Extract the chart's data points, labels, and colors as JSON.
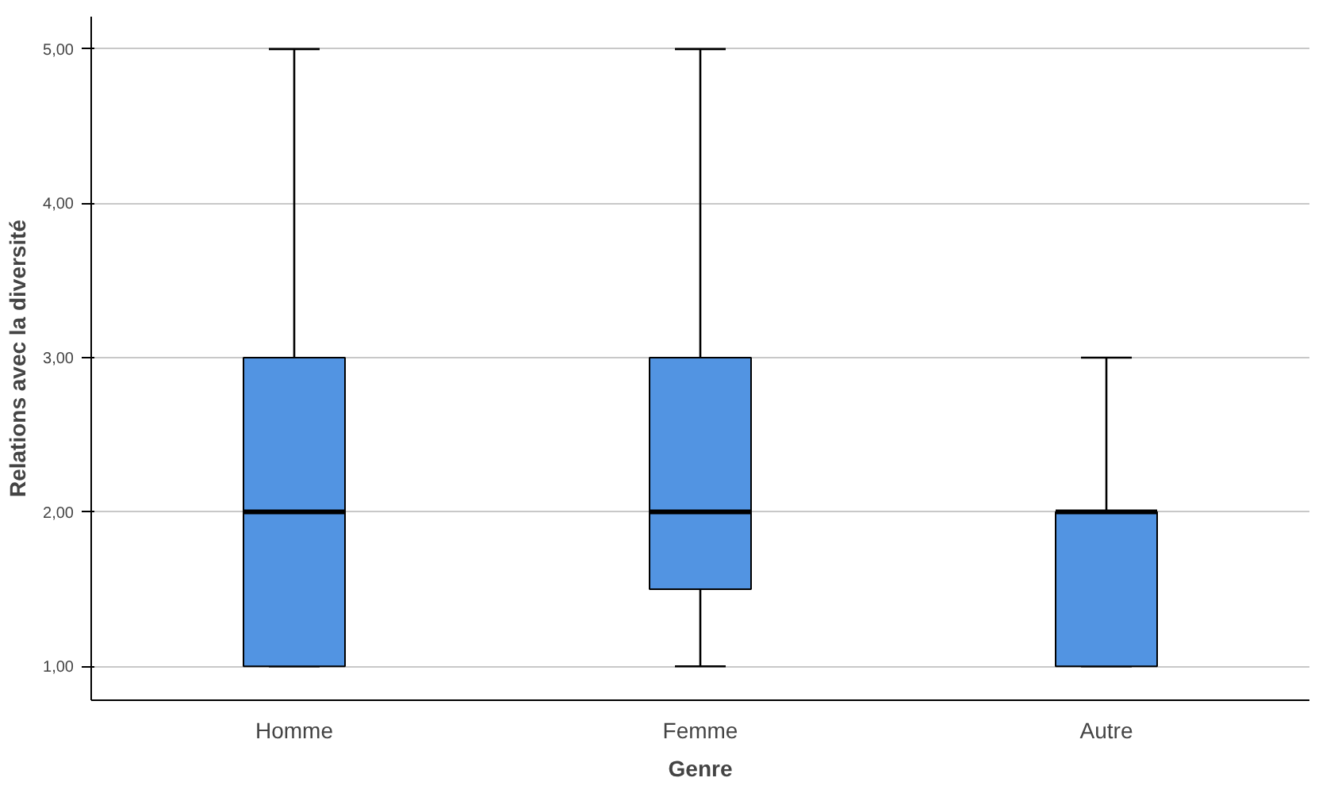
{
  "chart_data": {
    "type": "box",
    "xlabel": "Genre",
    "ylabel": "Relations avec la diversité",
    "categories": [
      "Homme",
      "Femme",
      "Autre"
    ],
    "boxes": [
      {
        "low": 1,
        "q1": 1,
        "median": 2,
        "q3": 3,
        "high": 5
      },
      {
        "low": 1,
        "q1": 1.5,
        "median": 2,
        "q3": 3,
        "high": 5
      },
      {
        "low": 1,
        "q1": 1,
        "median": 2,
        "q3": 2,
        "high": 3
      }
    ],
    "color": "#5294e2",
    "ylim": [
      0.78,
      5.21
    ],
    "yticks": [
      {
        "value": 1,
        "label": "1,00"
      },
      {
        "value": 2,
        "label": "2,00"
      },
      {
        "value": 3,
        "label": "3,00"
      },
      {
        "value": 4,
        "label": "4,00"
      },
      {
        "value": 5,
        "label": "5,00"
      }
    ],
    "grid": "y"
  }
}
